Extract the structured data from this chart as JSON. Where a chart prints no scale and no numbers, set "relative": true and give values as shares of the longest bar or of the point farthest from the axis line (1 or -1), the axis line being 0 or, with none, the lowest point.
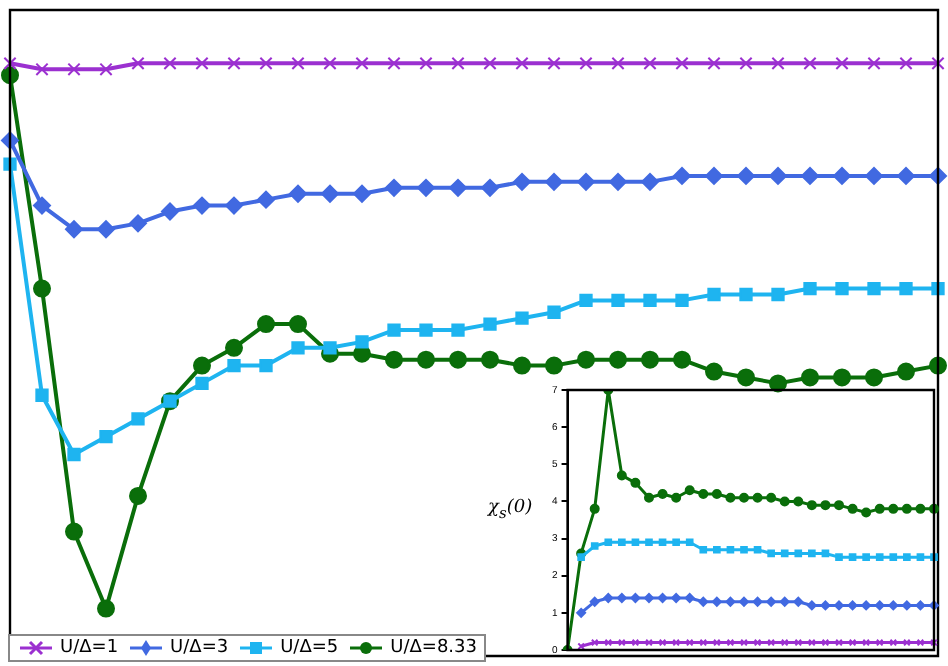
{
  "chart_data": [
    {
      "type": "line",
      "relative": true,
      "categories": [
        null,
        null,
        null,
        null,
        null,
        null,
        null,
        null,
        null,
        null,
        null,
        null,
        null,
        null,
        null,
        null,
        null,
        null,
        null,
        null,
        null,
        null,
        null,
        null,
        null,
        null,
        null,
        null,
        null,
        null
      ],
      "legend": "bottom left",
      "grid": false,
      "series": [
        {
          "name": "U/Δ=1",
          "color": "#9b30d0",
          "marker": "cross",
          "values": [
            1.0,
            0.99,
            0.99,
            0.99,
            1.0,
            1.0,
            1.0,
            1.0,
            1.0,
            1.0,
            1.0,
            1.0,
            1.0,
            1.0,
            1.0,
            1.0,
            1.0,
            1.0,
            1.0,
            1.0,
            1.0,
            1.0,
            1.0,
            1.0,
            1.0,
            1.0,
            1.0,
            1.0,
            1.0,
            1.0
          ]
        },
        {
          "name": "U/Δ=3",
          "color": "#4169e1",
          "marker": "diamond",
          "values": [
            0.87,
            0.76,
            0.72,
            0.72,
            0.73,
            0.75,
            0.76,
            0.76,
            0.77,
            0.78,
            0.78,
            0.78,
            0.79,
            0.79,
            0.79,
            0.79,
            0.8,
            0.8,
            0.8,
            0.8,
            0.8,
            0.81,
            0.81,
            0.81,
            0.81,
            0.81,
            0.81,
            0.81,
            0.81,
            0.81
          ]
        },
        {
          "name": "U/Δ=5",
          "color": "#1eb4f0",
          "marker": "square",
          "values": [
            0.83,
            0.44,
            0.34,
            0.37,
            0.4,
            0.43,
            0.46,
            0.49,
            0.49,
            0.52,
            0.52,
            0.53,
            0.55,
            0.55,
            0.55,
            0.56,
            0.57,
            0.58,
            0.6,
            0.6,
            0.6,
            0.6,
            0.61,
            0.61,
            0.61,
            0.62,
            0.62,
            0.62,
            0.62,
            0.62
          ]
        },
        {
          "name": "U/Δ=8.33",
          "color": "#0a6e0a",
          "marker": "circle",
          "values": [
            0.98,
            0.62,
            0.21,
            0.08,
            0.27,
            0.43,
            0.49,
            0.52,
            0.56,
            0.56,
            0.51,
            0.51,
            0.5,
            0.5,
            0.5,
            0.5,
            0.49,
            0.49,
            0.5,
            0.5,
            0.5,
            0.5,
            0.48,
            0.47,
            0.46,
            0.47,
            0.47,
            0.47,
            0.48,
            0.49
          ]
        }
      ]
    },
    {
      "type": "line",
      "ylabel": "χ$_{s}$(0)",
      "categories": [
        null,
        null,
        null,
        null,
        null,
        null,
        null,
        null,
        null,
        null,
        null,
        null,
        null,
        null,
        null,
        null,
        null,
        null,
        null,
        null,
        null,
        null,
        null,
        null,
        null,
        null,
        null,
        null
      ],
      "ylim": [
        0,
        7
      ],
      "yticks": [
        0,
        1,
        2,
        3,
        4,
        5,
        6,
        7
      ],
      "tick_labels": "y",
      "grid": false,
      "series": [
        {
          "color": "#9b30d0",
          "marker": "cross",
          "values": [
            null,
            0.1,
            0.2,
            0.2,
            0.2,
            0.2,
            0.2,
            0.2,
            0.2,
            0.2,
            0.2,
            0.2,
            0.2,
            0.2,
            0.2,
            0.2,
            0.2,
            0.2,
            0.2,
            0.2,
            0.2,
            0.2,
            0.2,
            0.2,
            0.2,
            0.2,
            0.2,
            0.2
          ]
        },
        {
          "color": "#4169e1",
          "marker": "diamond",
          "values": [
            null,
            1.0,
            1.3,
            1.4,
            1.4,
            1.4,
            1.4,
            1.4,
            1.4,
            1.4,
            1.3,
            1.3,
            1.3,
            1.3,
            1.3,
            1.3,
            1.3,
            1.3,
            1.2,
            1.2,
            1.2,
            1.2,
            1.2,
            1.2,
            1.2,
            1.2,
            1.2,
            1.2
          ]
        },
        {
          "color": "#1eb4f0",
          "marker": "square",
          "values": [
            null,
            2.5,
            2.8,
            2.9,
            2.9,
            2.9,
            2.9,
            2.9,
            2.9,
            2.9,
            2.7,
            2.7,
            2.7,
            2.7,
            2.7,
            2.6,
            2.6,
            2.6,
            2.6,
            2.6,
            2.5,
            2.5,
            2.5,
            2.5,
            2.5,
            2.5,
            2.5,
            2.5
          ]
        },
        {
          "color": "#0a6e0a",
          "marker": "circle",
          "values": [
            0,
            2.6,
            3.8,
            7.0,
            4.7,
            4.5,
            4.1,
            4.2,
            4.1,
            4.3,
            4.2,
            4.2,
            4.1,
            4.1,
            4.1,
            4.1,
            4.0,
            4.0,
            3.9,
            3.9,
            3.9,
            3.8,
            3.7,
            3.8,
            3.8,
            3.8,
            3.8,
            3.8
          ]
        }
      ]
    }
  ]
}
